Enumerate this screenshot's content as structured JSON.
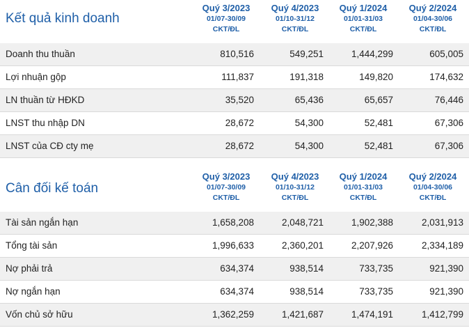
{
  "income": {
    "title": "Kết quả kinh doanh",
    "periods": [
      {
        "quarter": "Quý 3/2023",
        "range": "01/07-30/09",
        "audit": "CKT/ĐL"
      },
      {
        "quarter": "Quý 4/2023",
        "range": "01/10-31/12",
        "audit": "CKT/ĐL"
      },
      {
        "quarter": "Quý 1/2024",
        "range": "01/01-31/03",
        "audit": "CKT/ĐL"
      },
      {
        "quarter": "Quý 2/2024",
        "range": "01/04-30/06",
        "audit": "CKT/ĐL"
      }
    ],
    "rows": [
      {
        "label": "Doanh thu thuần",
        "values": [
          "810,516",
          "549,251",
          "1,444,299",
          "605,005"
        ]
      },
      {
        "label": "Lợi nhuận gộp",
        "values": [
          "111,837",
          "191,318",
          "149,820",
          "174,632"
        ]
      },
      {
        "label": "LN thuần từ HĐKD",
        "values": [
          "35,520",
          "65,436",
          "65,657",
          "76,446"
        ]
      },
      {
        "label": "LNST thu nhập DN",
        "values": [
          "28,672",
          "54,300",
          "52,481",
          "67,306"
        ]
      },
      {
        "label": "LNST của CĐ cty mẹ",
        "values": [
          "28,672",
          "54,300",
          "52,481",
          "67,306"
        ]
      }
    ]
  },
  "balance": {
    "title": "Cân đối kế toán",
    "periods": [
      {
        "quarter": "Quý 3/2023",
        "range": "01/07-30/09",
        "audit": "CKT/ĐL"
      },
      {
        "quarter": "Quý 4/2023",
        "range": "01/10-31/12",
        "audit": "CKT/ĐL"
      },
      {
        "quarter": "Quý 1/2024",
        "range": "01/01-31/03",
        "audit": "CKT/ĐL"
      },
      {
        "quarter": "Quý 2/2024",
        "range": "01/04-30/06",
        "audit": "CKT/ĐL"
      }
    ],
    "rows": [
      {
        "label": "Tài sản ngắn hạn",
        "values": [
          "1,658,208",
          "2,048,721",
          "1,902,388",
          "2,031,913"
        ]
      },
      {
        "label": "Tổng tài sản",
        "values": [
          "1,996,633",
          "2,360,201",
          "2,207,926",
          "2,334,189"
        ]
      },
      {
        "label": "Nợ phải trả",
        "values": [
          "634,374",
          "938,514",
          "733,735",
          "921,390"
        ]
      },
      {
        "label": "Nợ ngắn hạn",
        "values": [
          "634,374",
          "938,514",
          "733,735",
          "921,390"
        ]
      },
      {
        "label": "Vốn chủ sở hữu",
        "values": [
          "1,362,259",
          "1,421,687",
          "1,474,191",
          "1,412,799"
        ]
      }
    ]
  }
}
